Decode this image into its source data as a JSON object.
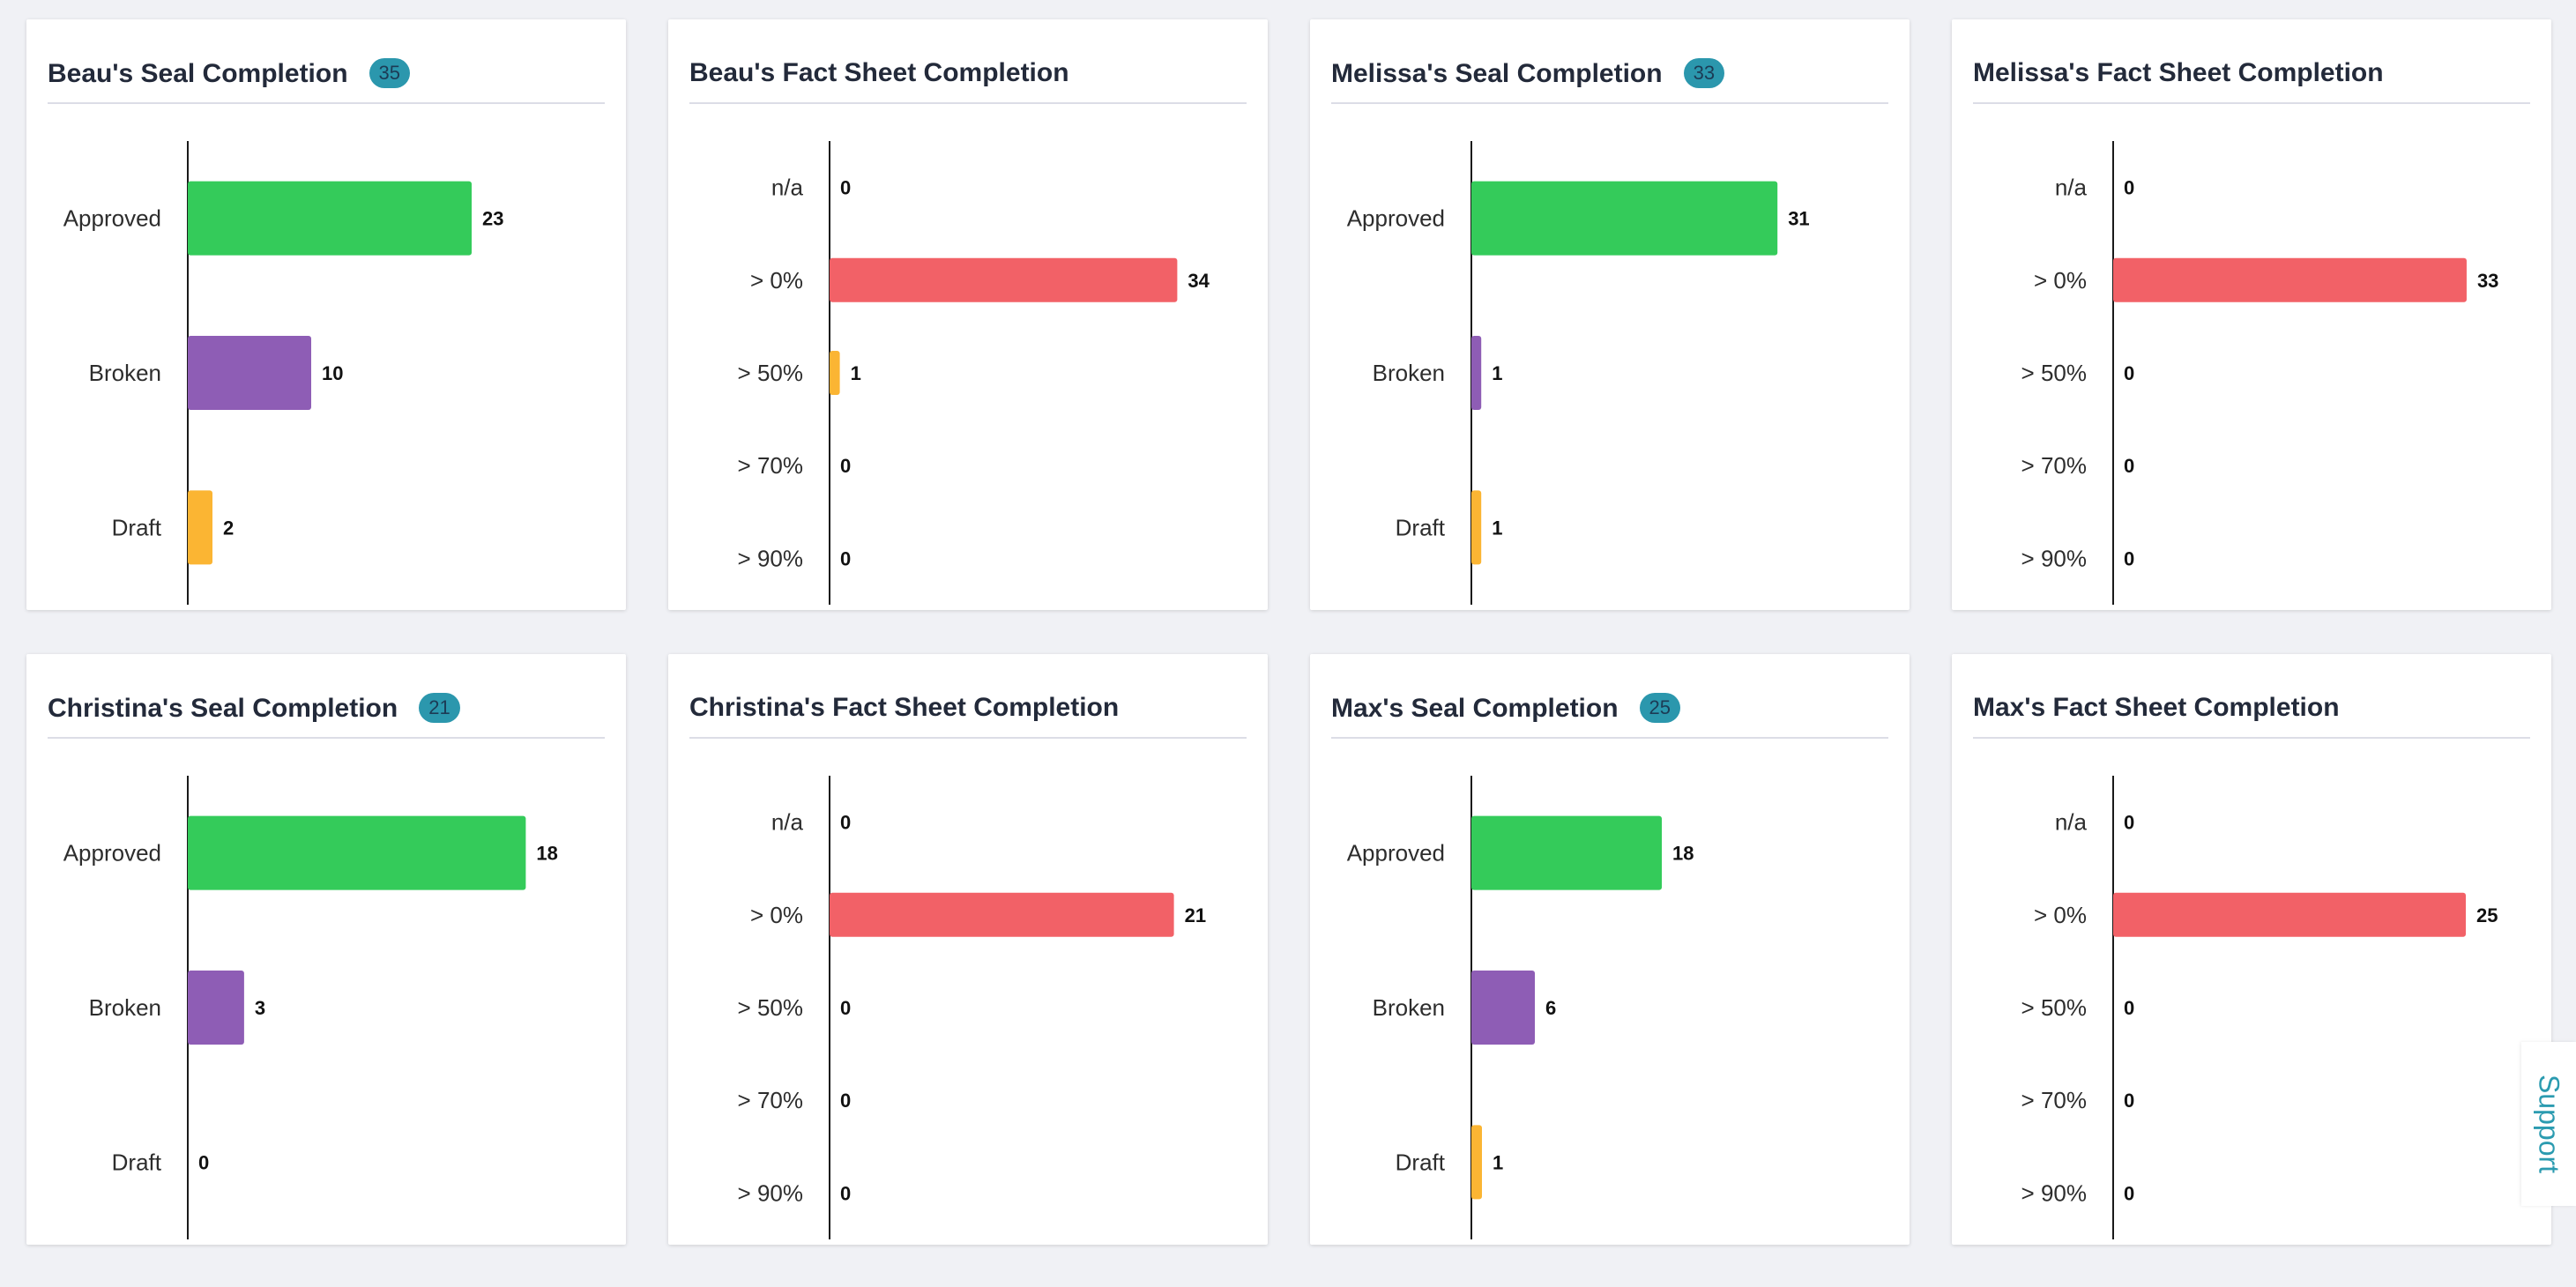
{
  "colors": {
    "approved": "#34cb5a",
    "broken": "#8e5db5",
    "draft": "#fbb533",
    "range_0": "#f26167",
    "range_50": "#fbb533"
  },
  "cards": [
    {
      "title": "Beau's Seal Completion",
      "badge": "35",
      "chart_data": {
        "type": "bar",
        "orientation": "horizontal",
        "categories": [
          "Approved",
          "Broken",
          "Draft"
        ],
        "values": [
          23,
          10,
          2
        ],
        "colors": [
          "#34cb5a",
          "#8e5db5",
          "#fbb533"
        ]
      }
    },
    {
      "title": "Beau's Fact Sheet Completion",
      "badge": "",
      "chart_data": {
        "type": "bar",
        "orientation": "horizontal",
        "categories": [
          "n/a",
          "> 0%",
          "> 50%",
          "> 70%",
          "> 90%"
        ],
        "values": [
          0,
          34,
          1,
          0,
          0
        ],
        "colors": [
          "#cccccc",
          "#f26167",
          "#fbb533",
          "#34cb5a",
          "#34cb5a"
        ]
      }
    },
    {
      "title": "Melissa's Seal Completion",
      "badge": "33",
      "chart_data": {
        "type": "bar",
        "orientation": "horizontal",
        "categories": [
          "Approved",
          "Broken",
          "Draft"
        ],
        "values": [
          31,
          1,
          1
        ],
        "colors": [
          "#34cb5a",
          "#8e5db5",
          "#fbb533"
        ]
      }
    },
    {
      "title": "Melissa's Fact Sheet Completion",
      "badge": "",
      "chart_data": {
        "type": "bar",
        "orientation": "horizontal",
        "categories": [
          "n/a",
          "> 0%",
          "> 50%",
          "> 70%",
          "> 90%"
        ],
        "values": [
          0,
          33,
          0,
          0,
          0
        ],
        "colors": [
          "#cccccc",
          "#f26167",
          "#fbb533",
          "#34cb5a",
          "#34cb5a"
        ]
      }
    },
    {
      "title": "Christina's Seal Completion",
      "badge": "21",
      "chart_data": {
        "type": "bar",
        "orientation": "horizontal",
        "categories": [
          "Approved",
          "Broken",
          "Draft"
        ],
        "values": [
          18,
          3,
          0
        ],
        "colors": [
          "#34cb5a",
          "#8e5db5",
          "#fbb533"
        ]
      }
    },
    {
      "title": "Christina's Fact Sheet Completion",
      "badge": "",
      "chart_data": {
        "type": "bar",
        "orientation": "horizontal",
        "categories": [
          "n/a",
          "> 0%",
          "> 50%",
          "> 70%",
          "> 90%"
        ],
        "values": [
          0,
          21,
          0,
          0,
          0
        ],
        "colors": [
          "#cccccc",
          "#f26167",
          "#fbb533",
          "#34cb5a",
          "#34cb5a"
        ]
      }
    },
    {
      "title": "Max's Seal Completion",
      "badge": "25",
      "chart_data": {
        "type": "bar",
        "orientation": "horizontal",
        "categories": [
          "Approved",
          "Broken",
          "Draft"
        ],
        "values": [
          18,
          6,
          1
        ],
        "colors": [
          "#34cb5a",
          "#8e5db5",
          "#fbb533"
        ]
      }
    },
    {
      "title": "Max's Fact Sheet Completion",
      "badge": "",
      "chart_data": {
        "type": "bar",
        "orientation": "horizontal",
        "categories": [
          "n/a",
          "> 0%",
          "> 50%",
          "> 70%",
          "> 90%"
        ],
        "values": [
          0,
          25,
          0,
          0,
          0
        ],
        "colors": [
          "#cccccc",
          "#f26167",
          "#fbb533",
          "#34cb5a",
          "#34cb5a"
        ]
      }
    }
  ],
  "support": {
    "label": "Support"
  }
}
